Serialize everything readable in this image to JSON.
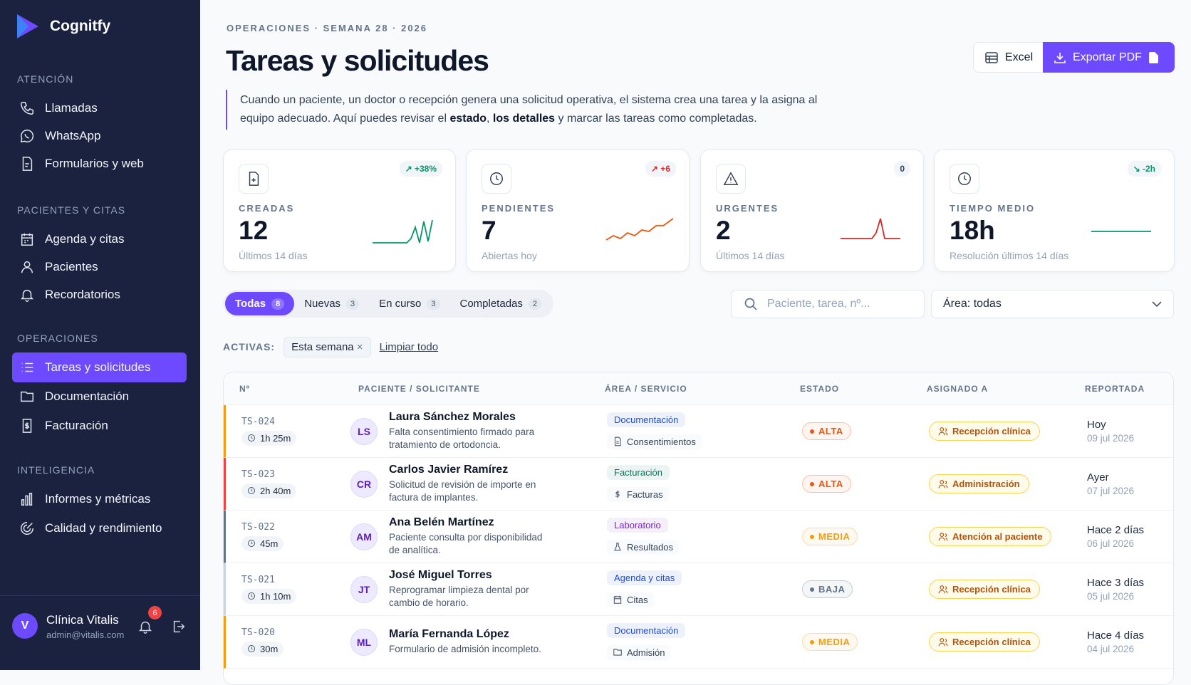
{
  "brand": "Cognitfy",
  "sidebar": {
    "sections": [
      {
        "title": "ATENCIÓN",
        "items": [
          {
            "label": "Llamadas"
          },
          {
            "label": "WhatsApp"
          },
          {
            "label": "Formularios y web"
          }
        ]
      },
      {
        "title": "PACIENTES Y CITAS",
        "items": [
          {
            "label": "Agenda y citas"
          },
          {
            "label": "Pacientes"
          },
          {
            "label": "Recordatorios"
          }
        ]
      },
      {
        "title": "OPERACIONES",
        "items": [
          {
            "label": "Tareas y solicitudes",
            "active": true
          },
          {
            "label": "Documentación"
          },
          {
            "label": "Facturación"
          }
        ]
      },
      {
        "title": "INTELIGENCIA",
        "items": [
          {
            "label": "Informes y métricas"
          },
          {
            "label": "Calidad y rendimiento"
          }
        ]
      }
    ],
    "user": {
      "initial": "V",
      "name": "Clínica Vitalis",
      "email": "admin@vitalis.com",
      "notifications": 6
    }
  },
  "header": {
    "eyebrow": "OPERACIONES · SEMANA 28 · 2026",
    "title": "Tareas y solicitudes",
    "description": [
      "Cuando un paciente, un doctor o recepción genera una solicitud operativa, el sistema crea una tarea y la asigna al equipo adecuado. Aquí puedes revisar el ",
      "estado",
      ", ",
      "los detalles",
      " y marcar las tareas como completadas."
    ],
    "buttons": [
      "Excel",
      "Exportar PDF"
    ]
  },
  "kpis": [
    {
      "label": "CREADAS",
      "value": 12,
      "delta": "+38%",
      "trend": "up",
      "delta_color": "#059669",
      "note": "Últimos 14 días",
      "color": "#059669"
    },
    {
      "label": "PENDIENTES",
      "value": 7,
      "delta": "+6",
      "trend": "up",
      "delta_color": "#dc2626",
      "note": "Abiertas hoy",
      "color": "#ea580c"
    },
    {
      "label": "URGENTES",
      "value": 2,
      "delta": "0",
      "delta_color": "#334155",
      "note": "Últimos 14 días",
      "color": "#dc2626"
    },
    {
      "label": "TIEMPO MEDIO",
      "value": "18h",
      "delta": "-2h",
      "trend": "down",
      "delta_color": "#059669",
      "note": "Resolución últimos 14 días",
      "color": "#059669"
    }
  ],
  "tabs": [
    {
      "label": "Todas",
      "count": 8,
      "active": true
    },
    {
      "label": "Nuevas",
      "count": 3
    },
    {
      "label": "En curso",
      "count": 3
    },
    {
      "label": "Completadas",
      "count": 2
    }
  ],
  "search_placeholder": "Paciente, tarea, nº...",
  "area_filter": "Área: todas",
  "active_filters": {
    "label": "ACTIVAS:",
    "chips": [
      "Esta semana"
    ],
    "clear": "Limpiar todo"
  },
  "table": {
    "columns": [
      "Nº",
      "PACIENTE / SOLICITANTE",
      "ÁREA / SERVICIO",
      "ESTADO",
      "ASIGNADO A",
      "REPORTADA"
    ],
    "rows": [
      {
        "id": "TS-024",
        "elapsed": "1h 25m",
        "initials": "LS",
        "name": "Laura Sánchez Morales",
        "detail": "Falta consentimiento firmado para tratamiento de ortodoncia.",
        "area": "Documentación",
        "area_color": "#1d4ed8",
        "service": "Consentimientos",
        "priority": "ALTA",
        "priority_color": "#ea580c",
        "assignee": "Recepción clínica",
        "reported": "Hoy",
        "date": "09 jul 2026",
        "accent": "#f59e0b"
      },
      {
        "id": "TS-023",
        "elapsed": "2h 40m",
        "initials": "CR",
        "name": "Carlos Javier Ramírez",
        "detail": "Solicitud de revisión de importe en factura de implantes.",
        "area": "Facturación",
        "area_color": "#047857",
        "service": "Facturas",
        "priority": "ALTA",
        "priority_color": "#ea580c",
        "assignee": "Administración",
        "reported": "Ayer",
        "date": "07 jul 2026",
        "accent": "#ef4444"
      },
      {
        "id": "TS-022",
        "elapsed": "45m",
        "initials": "AM",
        "name": "Ana Belén Martínez",
        "detail": "Paciente consulta por disponibilidad de analítica.",
        "area": "Laboratorio",
        "area_color": "#7e22ce",
        "service": "Resultados",
        "priority": "MEDIA",
        "priority_color": "#f59e0b",
        "assignee": "Atención al paciente",
        "reported": "Hace 2 días",
        "date": "06 jul 2026",
        "accent": "#64748b"
      },
      {
        "id": "TS-021",
        "elapsed": "1h 10m",
        "initials": "JT",
        "name": "José Miguel Torres",
        "detail": "Reprogramar limpieza dental por cambio de horario.",
        "area": "Agenda y citas",
        "area_color": "#1d4ed8",
        "service": "Citas",
        "priority": "BAJA",
        "priority_color": "#64748b",
        "assignee": "Recepción clínica",
        "reported": "Hace 3 días",
        "date": "05 jul 2026",
        "accent": "#cbd5e1"
      },
      {
        "id": "TS-020",
        "elapsed": "30m",
        "initials": "ML",
        "name": "María Fernanda López",
        "detail": "Formulario de admisión incompleto.",
        "area": "Documentación",
        "area_color": "#1d4ed8",
        "service": "Admisión",
        "priority": "MEDIA",
        "priority_color": "#f59e0b",
        "assignee": "Recepción clínica",
        "reported": "Hace 4 días",
        "date": "04 jul 2026",
        "accent": "#f59e0b"
      }
    ]
  }
}
